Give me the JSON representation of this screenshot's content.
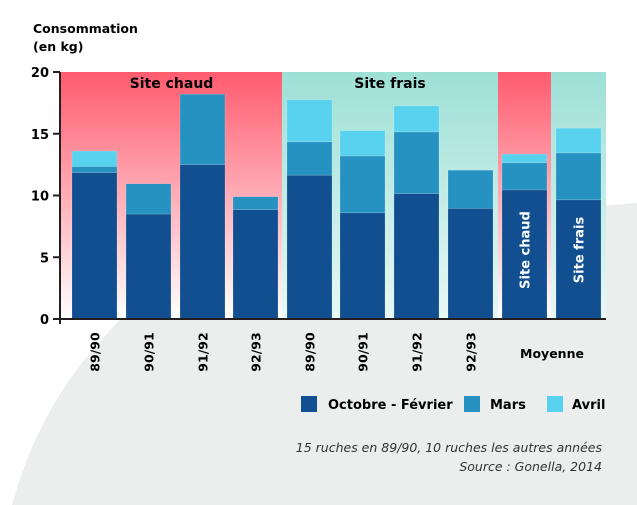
{
  "chart_data": {
    "type": "bar",
    "stacked": true,
    "title": "",
    "ylabel": "Consommation (en kg)",
    "ylabel_lines": [
      "Consommation",
      "(en kg)"
    ],
    "xlabel": "",
    "ylim": [
      0,
      20
    ],
    "yticks": [
      0,
      5,
      10,
      15,
      20
    ],
    "grid": false,
    "categories": [
      "89/90",
      "90/91",
      "91/92",
      "92/93",
      "89/90",
      "90/91",
      "91/92",
      "92/93",
      "Site chaud",
      "Site frais"
    ],
    "groups": [
      {
        "label": "Site chaud",
        "categories": [
          0,
          1,
          2,
          3
        ],
        "color_top": "#ff5b6e",
        "color_bottom": "#ffffff"
      },
      {
        "label": "Site frais",
        "categories": [
          4,
          5,
          6,
          7
        ],
        "color_top": "#9de0d6",
        "color_bottom": "#e6f7f4"
      },
      {
        "label": "",
        "categories": [
          8
        ],
        "color_top": "#ff5b6e",
        "color_bottom": "#ffffff"
      },
      {
        "label": "",
        "categories": [
          9
        ],
        "color_top": "#9de0d6",
        "color_bottom": "#e6f7f4"
      }
    ],
    "group_axis_label": "Moyenne",
    "inbar_labels": {
      "8": "Site chaud",
      "9": "Site frais"
    },
    "series": [
      {
        "name": "Octobre - Février",
        "color": "#114f91",
        "values": [
          11.85,
          8.5,
          12.5,
          8.85,
          11.65,
          8.6,
          10.15,
          8.95,
          10.45,
          9.65
        ]
      },
      {
        "name": "Mars",
        "color": "#2692c2",
        "values": [
          0.5,
          2.45,
          5.7,
          1.05,
          2.7,
          4.6,
          5.0,
          3.1,
          2.2,
          3.8
        ]
      },
      {
        "name": "Avril",
        "color": "#58d2ee",
        "values": [
          1.25,
          0,
          0,
          0,
          3.4,
          2.05,
          2.1,
          0,
          0.7,
          2.0
        ]
      }
    ],
    "legend_position": "bottom-right",
    "annotations": [
      "15 ruches en 89/90, 10 ruches les autres années",
      "Source : Gonella, 2014"
    ]
  }
}
